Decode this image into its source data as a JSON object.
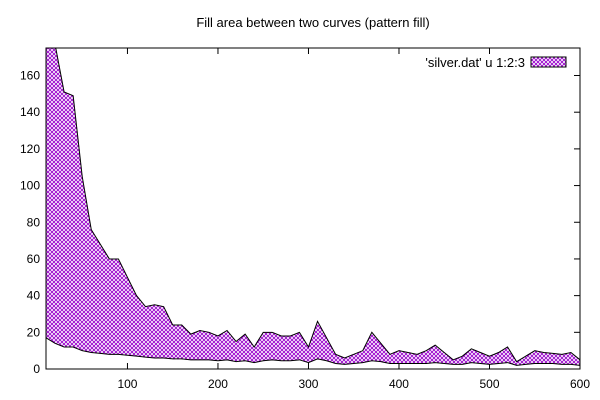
{
  "chart_data": {
    "type": "area",
    "title": "Fill area between two curves (pattern fill)",
    "xlabel": "",
    "ylabel": "",
    "xlim": [
      10,
      600
    ],
    "ylim": [
      0,
      175
    ],
    "xticks": [
      100,
      200,
      300,
      400,
      500,
      600
    ],
    "yticks": [
      0,
      20,
      40,
      60,
      80,
      100,
      120,
      140,
      160
    ],
    "legend_position": "top-right",
    "fill_color": "#9900cc",
    "series": [
      {
        "name": "'silver.dat' u 1:2:3",
        "x": [
          10,
          20,
          30,
          40,
          50,
          60,
          70,
          80,
          90,
          100,
          110,
          120,
          130,
          140,
          150,
          160,
          170,
          180,
          190,
          200,
          210,
          220,
          230,
          240,
          250,
          260,
          270,
          280,
          290,
          300,
          310,
          320,
          330,
          340,
          350,
          360,
          370,
          380,
          390,
          400,
          410,
          420,
          430,
          440,
          450,
          460,
          470,
          480,
          490,
          500,
          510,
          520,
          530,
          540,
          550,
          560,
          570,
          580,
          590,
          600
        ],
        "upper": [
          180,
          177,
          151,
          149,
          105,
          76,
          68,
          60,
          60,
          50,
          40,
          34,
          35,
          34,
          24,
          24,
          19,
          21,
          20,
          18,
          21,
          15,
          19,
          12,
          20,
          20,
          18,
          18,
          20,
          12,
          26,
          17,
          8,
          6,
          8,
          10,
          20,
          14,
          8,
          10,
          9,
          8,
          10,
          13,
          9,
          5,
          7,
          11,
          9,
          7,
          9,
          12,
          4,
          7,
          10,
          9,
          8.5,
          8,
          9,
          5
        ],
        "lower": [
          17,
          14,
          12,
          12,
          10,
          9,
          8.5,
          8,
          8,
          7.5,
          7,
          6.5,
          6,
          6,
          5.5,
          5.5,
          5,
          5,
          5,
          4.5,
          5,
          4,
          4.5,
          3.5,
          4.5,
          5,
          4.5,
          4.5,
          5,
          3.5,
          5.5,
          4.5,
          3,
          2.5,
          3,
          3.5,
          4.5,
          4,
          3,
          3,
          3,
          3,
          3,
          3.5,
          3,
          2.5,
          2.5,
          3.5,
          3,
          2.5,
          3,
          3.5,
          2,
          2.5,
          3,
          3,
          3,
          2.5,
          2.5,
          2
        ]
      }
    ]
  }
}
